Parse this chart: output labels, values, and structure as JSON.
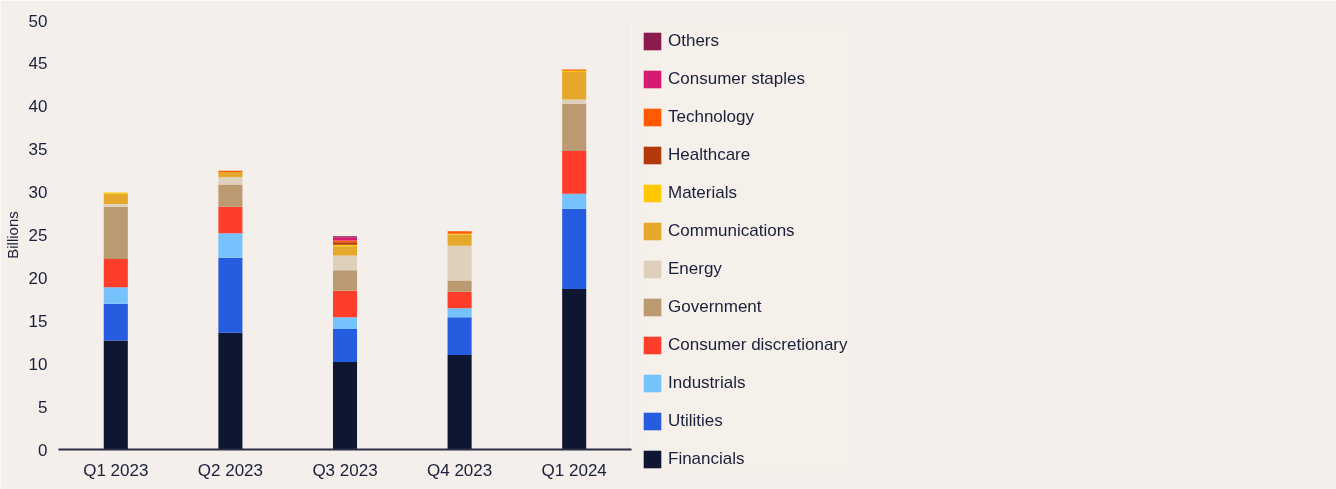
{
  "chart_data": {
    "type": "bar",
    "stacked": true,
    "ylabel": "Billions",
    "categories": [
      "Q1 2023",
      "Q2 2023",
      "Q3 2023",
      "Q4 2023",
      "Q1 2024"
    ],
    "ylim": [
      0,
      50
    ],
    "yticks": [
      0,
      5,
      10,
      15,
      20,
      25,
      30,
      35,
      40,
      45,
      50
    ],
    "grid": false,
    "legend": "right",
    "series": [
      {
        "name": "Financials",
        "color": "#0f1632",
        "values": [
          12.7,
          13.6,
          10.2,
          11.0,
          18.7
        ]
      },
      {
        "name": "Utilities",
        "color": "#255de0",
        "values": [
          4.3,
          8.75,
          3.85,
          4.4,
          9.35
        ]
      },
      {
        "name": "Industrials",
        "color": "#75c2fd",
        "values": [
          1.9,
          2.85,
          1.35,
          1.05,
          1.75
        ]
      },
      {
        "name": "Consumer discretionary",
        "color": "#ff3d2b",
        "values": [
          3.3,
          3.1,
          3.1,
          1.95,
          5.0
        ]
      },
      {
        "name": "Government",
        "color": "#bb9a72",
        "values": [
          6.1,
          2.6,
          2.4,
          1.3,
          5.5
        ]
      },
      {
        "name": "Energy",
        "color": "#dfd0bc",
        "values": [
          0.3,
          0.85,
          1.7,
          4.05,
          0.5
        ]
      },
      {
        "name": "Communications",
        "color": "#e5a82a",
        "values": [
          1.2,
          0.6,
          1.1,
          1.3,
          3.2
        ]
      },
      {
        "name": "Materials",
        "color": "#ffc800",
        "values": [
          0.15,
          0,
          0.15,
          0.1,
          0.15
        ]
      },
      {
        "name": "Healthcare",
        "color": "#b23a0a",
        "values": [
          0,
          0,
          0.3,
          0,
          0
        ]
      },
      {
        "name": "Technology",
        "color": "#ff5a00",
        "values": [
          0,
          0.15,
          0.2,
          0.3,
          0.15
        ]
      },
      {
        "name": "Consumer staples",
        "color": "#d81b72",
        "values": [
          0,
          0,
          0.4,
          0,
          0
        ]
      },
      {
        "name": "Others",
        "color": "#8b1a4f",
        "values": [
          0,
          0,
          0.1,
          0,
          0
        ]
      }
    ]
  }
}
